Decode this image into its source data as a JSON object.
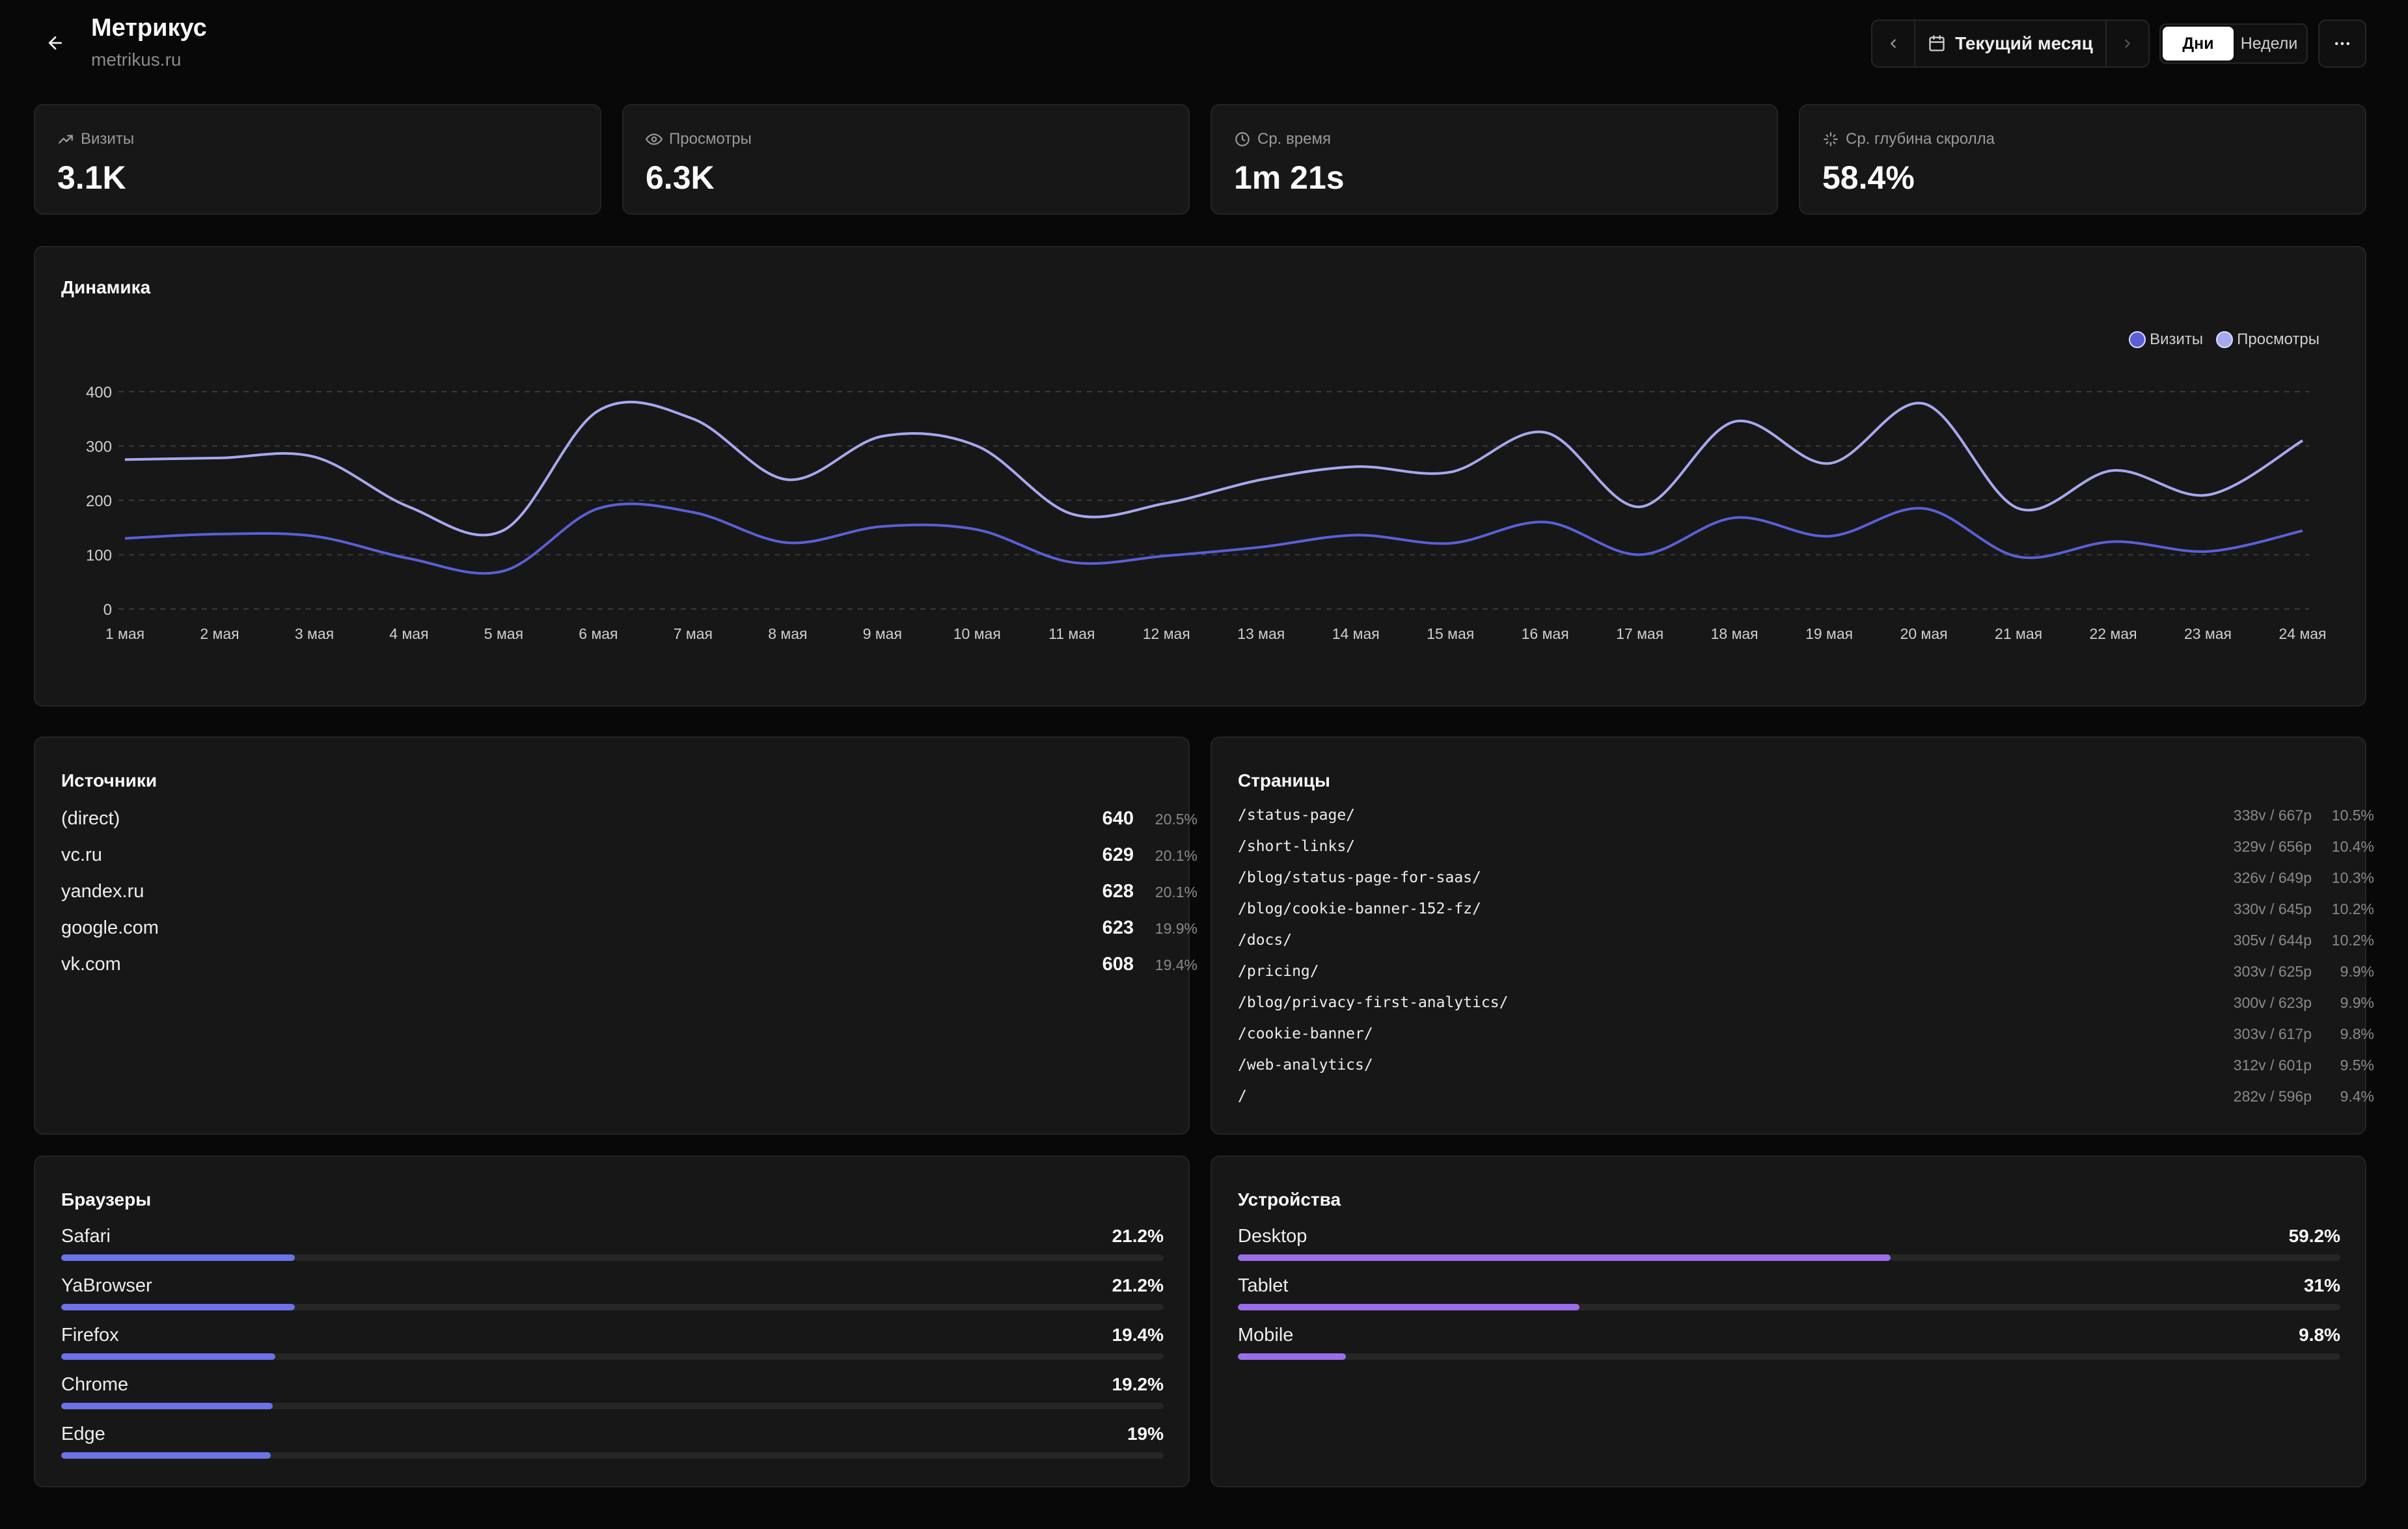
{
  "header": {
    "title": "Метрикус",
    "domain": "metrikus.ru",
    "period_label": "Текущий месяц",
    "granularity": [
      "Дни",
      "Недели"
    ],
    "granularity_active": "Дни"
  },
  "kpis": [
    {
      "label": "Визиты",
      "value": "3.1K",
      "icon": "trending-up-icon"
    },
    {
      "label": "Просмотры",
      "value": "6.3K",
      "icon": "eye-icon"
    },
    {
      "label": "Ср. время",
      "value": "1m 21s",
      "icon": "clock-icon"
    },
    {
      "label": "Ср. глубина скролла",
      "value": "58.4%",
      "icon": "sparkle-icon"
    }
  ],
  "dynamics": {
    "title": "Динамика"
  },
  "chart_data": {
    "type": "line",
    "x": [
      "1 мая",
      "2 мая",
      "3 мая",
      "4 мая",
      "5 мая",
      "6 мая",
      "7 мая",
      "8 мая",
      "9 мая",
      "10 мая",
      "11 мая",
      "12 мая",
      "13 мая",
      "14 мая",
      "15 мая",
      "16 мая",
      "17 мая",
      "18 мая",
      "19 мая",
      "20 мая",
      "21 мая",
      "22 мая",
      "23 мая",
      "24 мая"
    ],
    "series": [
      {
        "name": "Визиты",
        "color": "#5b5fd6",
        "values": [
          130,
          138,
          134,
          93,
          70,
          185,
          178,
          122,
          152,
          146,
          86,
          98,
          114,
          136,
          121,
          160,
          100,
          168,
          134,
          185,
          96,
          124,
          106,
          144
        ]
      },
      {
        "name": "Просмотры",
        "color": "#a6a9ee",
        "values": [
          275,
          278,
          280,
          188,
          145,
          365,
          350,
          238,
          318,
          300,
          175,
          195,
          238,
          262,
          252,
          325,
          188,
          345,
          268,
          378,
          185,
          255,
          210,
          310
        ]
      }
    ],
    "yticks": [
      0,
      100,
      200,
      300,
      400
    ],
    "ylim": [
      0,
      400
    ],
    "grid": true,
    "legend_position": "top-right"
  },
  "sources": {
    "title": "Источники",
    "rows": [
      {
        "name": "(direct)",
        "count": "640",
        "pct": "20.5%"
      },
      {
        "name": "vc.ru",
        "count": "629",
        "pct": "20.1%"
      },
      {
        "name": "yandex.ru",
        "count": "628",
        "pct": "20.1%"
      },
      {
        "name": "google.com",
        "count": "623",
        "pct": "19.9%"
      },
      {
        "name": "vk.com",
        "count": "608",
        "pct": "19.4%"
      }
    ]
  },
  "pages": {
    "title": "Страницы",
    "rows": [
      {
        "path": "/status-page/",
        "vp": "338v / 667p",
        "pct": "10.5%"
      },
      {
        "path": "/short-links/",
        "vp": "329v / 656p",
        "pct": "10.4%"
      },
      {
        "path": "/blog/status-page-for-saas/",
        "vp": "326v / 649p",
        "pct": "10.3%"
      },
      {
        "path": "/blog/cookie-banner-152-fz/",
        "vp": "330v / 645p",
        "pct": "10.2%"
      },
      {
        "path": "/docs/",
        "vp": "305v / 644p",
        "pct": "10.2%"
      },
      {
        "path": "/pricing/",
        "vp": "303v / 625p",
        "pct": "9.9%"
      },
      {
        "path": "/blog/privacy-first-analytics/",
        "vp": "300v / 623p",
        "pct": "9.9%"
      },
      {
        "path": "/cookie-banner/",
        "vp": "303v / 617p",
        "pct": "9.8%"
      },
      {
        "path": "/web-analytics/",
        "vp": "312v / 601p",
        "pct": "9.5%"
      },
      {
        "path": "/",
        "vp": "282v / 596p",
        "pct": "9.4%"
      }
    ]
  },
  "browsers": {
    "title": "Браузеры",
    "color": "#6c72e8",
    "rows": [
      {
        "name": "Safari",
        "pct": "21.2%",
        "value": 21.2
      },
      {
        "name": "YaBrowser",
        "pct": "21.2%",
        "value": 21.2
      },
      {
        "name": "Firefox",
        "pct": "19.4%",
        "value": 19.4
      },
      {
        "name": "Chrome",
        "pct": "19.2%",
        "value": 19.2
      },
      {
        "name": "Edge",
        "pct": "19%",
        "value": 19.0
      }
    ]
  },
  "devices": {
    "title": "Устройства",
    "color": "#9a6ee8",
    "rows": [
      {
        "name": "Desktop",
        "pct": "59.2%",
        "value": 59.2
      },
      {
        "name": "Tablet",
        "pct": "31%",
        "value": 31.0
      },
      {
        "name": "Mobile",
        "pct": "9.8%",
        "value": 9.8
      }
    ]
  }
}
